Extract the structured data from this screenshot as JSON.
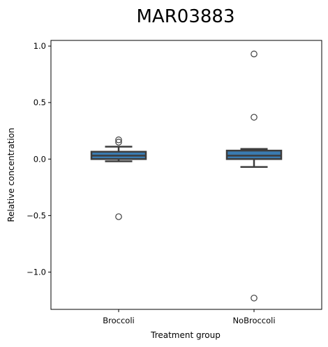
{
  "chart_data": {
    "type": "box",
    "title": "MAR03883",
    "xlabel": "Treatment group",
    "ylabel": "Relative concentration",
    "categories": [
      "Broccoli",
      "NoBroccoli"
    ],
    "ylim": [
      -1.33,
      1.05
    ],
    "yticks": [
      1.0,
      0.5,
      0.0,
      -0.5,
      -1.0
    ],
    "ytick_labels": [
      "1.0",
      "0.5",
      "0.0",
      "−0.5",
      "−1.0"
    ],
    "boxes": [
      {
        "category": "Broccoli",
        "whisker_low": -0.02,
        "q1": 0.0,
        "median": 0.03,
        "q3": 0.065,
        "whisker_high": 0.11,
        "outliers": [
          0.17,
          0.15,
          -0.51
        ]
      },
      {
        "category": "NoBroccoli",
        "whisker_low": -0.07,
        "q1": 0.0,
        "median": 0.03,
        "q3": 0.075,
        "whisker_high": 0.09,
        "outliers": [
          0.93,
          0.37,
          -1.23
        ]
      }
    ],
    "box_color": "#3a7bb0",
    "line_color": "#3d3d3d",
    "grid": false,
    "legend": "none"
  }
}
